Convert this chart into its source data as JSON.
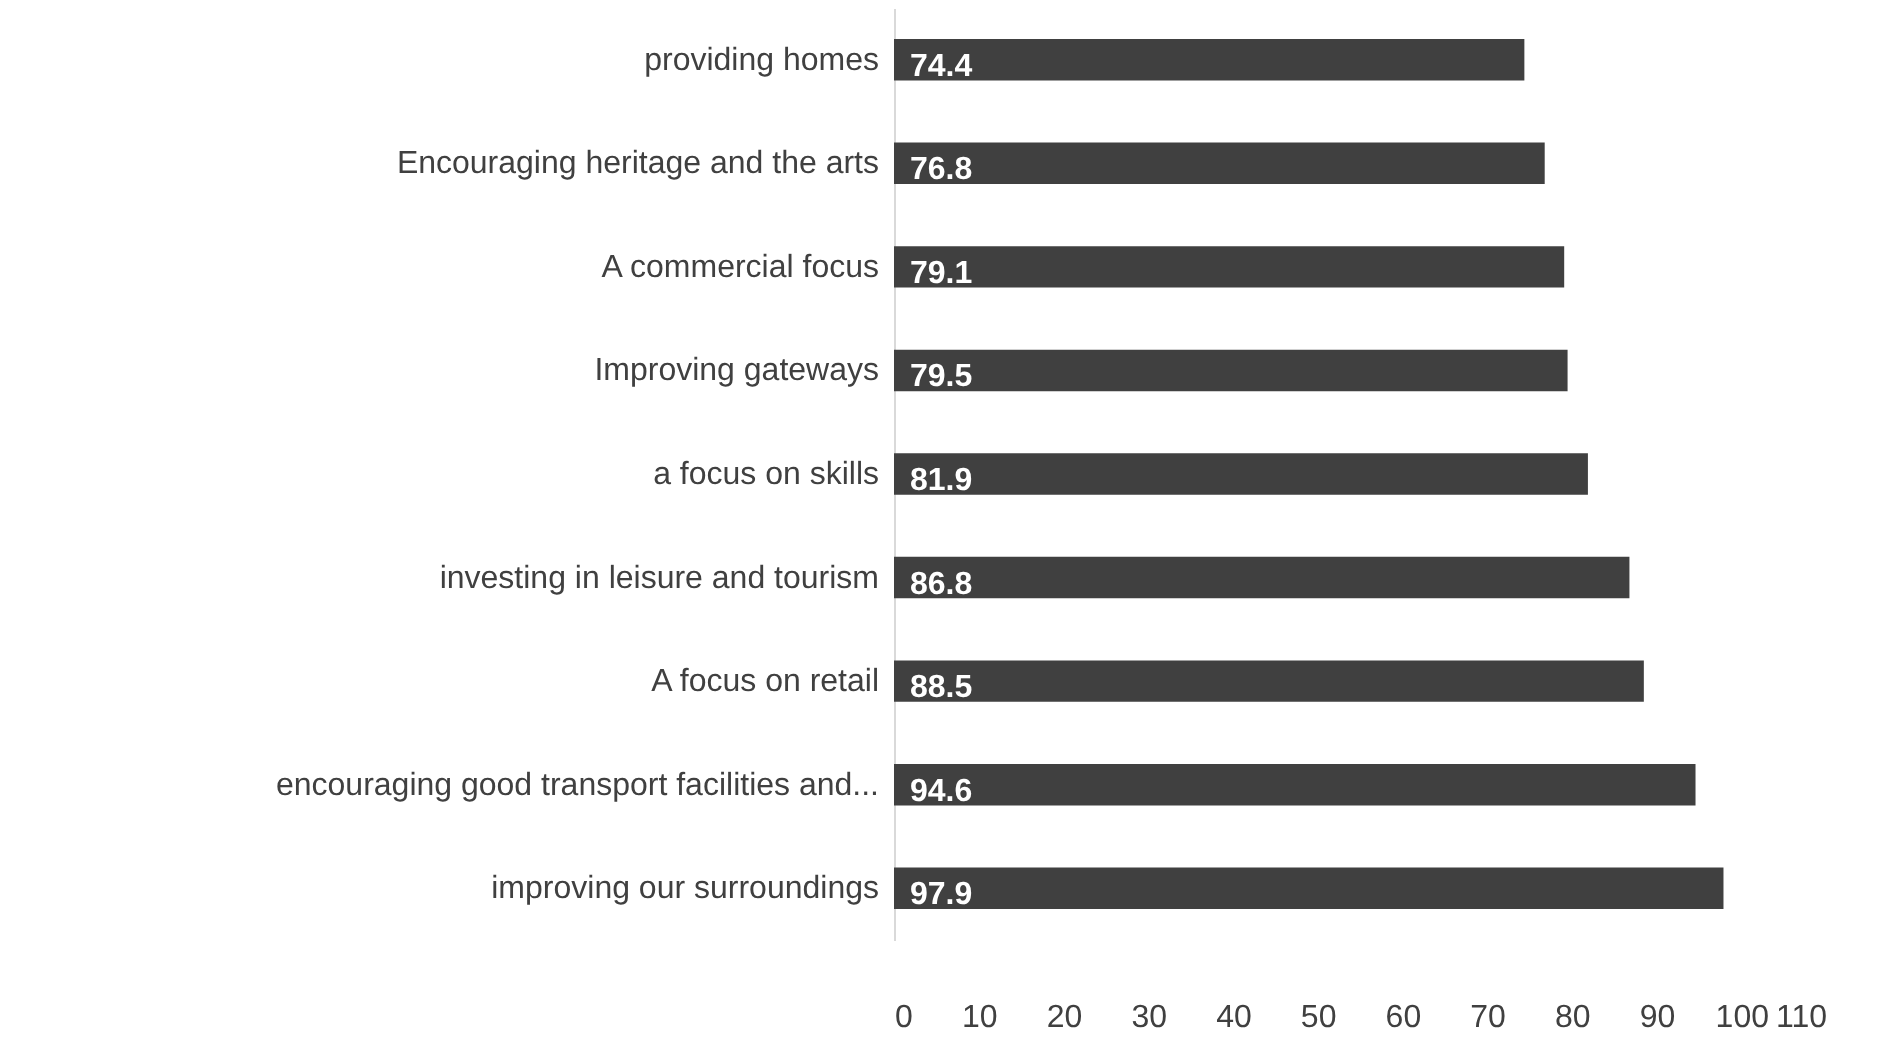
{
  "chart_data": {
    "type": "bar",
    "orientation": "horizontal",
    "categories": [
      "providing homes",
      "Encouraging heritage and the arts",
      "A commercial focus",
      "Improving gateways",
      "a focus on skills",
      "investing in leisure and tourism",
      "A focus on retail",
      "encouraging good transport facilities and...",
      "improving our surroundings"
    ],
    "values": [
      74.4,
      76.8,
      79.1,
      79.5,
      81.9,
      86.8,
      88.5,
      94.6,
      97.9
    ],
    "color": "#404040",
    "xlim": [
      0,
      110
    ],
    "xticks": [
      0,
      10,
      20,
      30,
      40,
      50,
      60,
      70,
      80,
      90,
      100,
      110
    ],
    "data_labels": true,
    "grid": false
  }
}
